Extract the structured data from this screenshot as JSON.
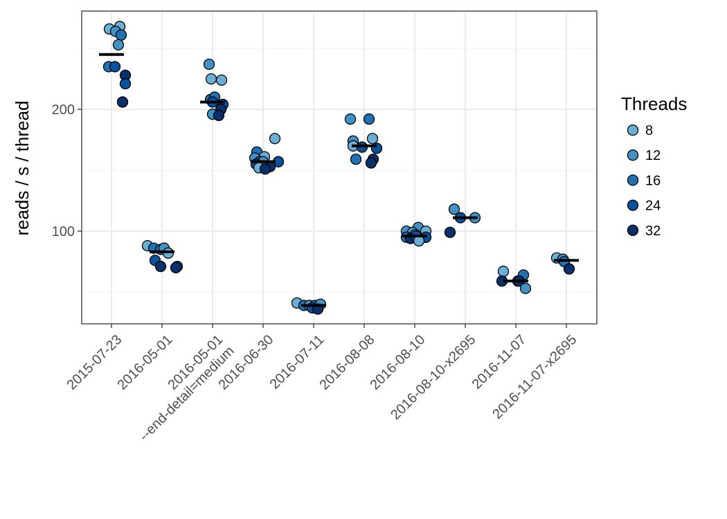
{
  "chart_data": {
    "type": "scatter",
    "subtype": "jittered strip plot with median bars",
    "title": "",
    "xlabel": "",
    "ylabel": "reads / s / thread",
    "ylim": [
      22,
      280
    ],
    "yticks": [
      100,
      200
    ],
    "grid": true,
    "legend_position": "right",
    "categories": [
      "2015-07-23",
      "2016-05-01",
      "2016-05-01\n--end-detail=medium",
      "2016-06-30",
      "2016-07-11",
      "2016-08-08",
      "2016-08-10",
      "2016-08-10-x2695",
      "2016-11-07",
      "2016-11-07-x2695"
    ],
    "legend": {
      "title": "Threads",
      "entries": [
        {
          "label": "8",
          "color": "#6BAED6"
        },
        {
          "label": "12",
          "color": "#4292C6"
        },
        {
          "label": "16",
          "color": "#2171B5"
        },
        {
          "label": "24",
          "color": "#08519C"
        },
        {
          "label": "32",
          "color": "#08306B"
        }
      ]
    },
    "medians": [
      245,
      83,
      206,
      157,
      39,
      170,
      96,
      111,
      59,
      76
    ],
    "points": [
      {
        "cat": 0,
        "dx": -3,
        "threads": 8,
        "y": 266
      },
      {
        "cat": 0,
        "dx": 12,
        "threads": 8,
        "y": 268
      },
      {
        "cat": 0,
        "dx": 6,
        "threads": 12,
        "y": 264
      },
      {
        "cat": 0,
        "dx": 14,
        "threads": 16,
        "y": 261
      },
      {
        "cat": 0,
        "dx": 10,
        "threads": 12,
        "y": 253
      },
      {
        "cat": 0,
        "dx": -4,
        "threads": 16,
        "y": 235
      },
      {
        "cat": 0,
        "dx": 5,
        "threads": 24,
        "y": 235
      },
      {
        "cat": 0,
        "dx": 20,
        "threads": 32,
        "y": 228
      },
      {
        "cat": 0,
        "dx": 20,
        "threads": 24,
        "y": 221
      },
      {
        "cat": 0,
        "dx": 16,
        "threads": 32,
        "y": 206
      },
      {
        "cat": 1,
        "dx": -21,
        "threads": 8,
        "y": 88
      },
      {
        "cat": 1,
        "dx": -12,
        "threads": 16,
        "y": 86
      },
      {
        "cat": 1,
        "dx": -2,
        "threads": 16,
        "y": 85
      },
      {
        "cat": 1,
        "dx": 3,
        "threads": 12,
        "y": 86
      },
      {
        "cat": 1,
        "dx": 9,
        "threads": 8,
        "y": 82
      },
      {
        "cat": 1,
        "dx": -10,
        "threads": 24,
        "y": 76
      },
      {
        "cat": 1,
        "dx": -2,
        "threads": 32,
        "y": 71
      },
      {
        "cat": 1,
        "dx": 22,
        "threads": 24,
        "y": 71
      },
      {
        "cat": 1,
        "dx": 20,
        "threads": 32,
        "y": 70
      },
      {
        "cat": 2,
        "dx": -5,
        "threads": 12,
        "y": 237
      },
      {
        "cat": 2,
        "dx": -2,
        "threads": 8,
        "y": 225
      },
      {
        "cat": 2,
        "dx": 13,
        "threads": 8,
        "y": 224
      },
      {
        "cat": 2,
        "dx": -3,
        "threads": 16,
        "y": 208
      },
      {
        "cat": 2,
        "dx": 3,
        "threads": 16,
        "y": 210
      },
      {
        "cat": 2,
        "dx": 0,
        "threads": 24,
        "y": 206
      },
      {
        "cat": 2,
        "dx": 15,
        "threads": 24,
        "y": 204
      },
      {
        "cat": 2,
        "dx": 12,
        "threads": 32,
        "y": 200
      },
      {
        "cat": 2,
        "dx": 0,
        "threads": 12,
        "y": 196
      },
      {
        "cat": 2,
        "dx": 9,
        "threads": 32,
        "y": 195
      },
      {
        "cat": 3,
        "dx": 17,
        "threads": 8,
        "y": 176
      },
      {
        "cat": 3,
        "dx": -9,
        "threads": 16,
        "y": 165
      },
      {
        "cat": 3,
        "dx": 2,
        "threads": 8,
        "y": 161
      },
      {
        "cat": 3,
        "dx": -12,
        "threads": 12,
        "y": 160
      },
      {
        "cat": 3,
        "dx": -5,
        "threads": 16,
        "y": 157
      },
      {
        "cat": 3,
        "dx": 0,
        "threads": 12,
        "y": 157
      },
      {
        "cat": 3,
        "dx": 22,
        "threads": 24,
        "y": 157
      },
      {
        "cat": 3,
        "dx": -10,
        "threads": 24,
        "y": 155
      },
      {
        "cat": 3,
        "dx": -6,
        "threads": 8,
        "y": 152
      },
      {
        "cat": 3,
        "dx": 10,
        "threads": 32,
        "y": 153
      },
      {
        "cat": 3,
        "dx": 3,
        "threads": 32,
        "y": 151
      },
      {
        "cat": 4,
        "dx": -24,
        "threads": 8,
        "y": 41
      },
      {
        "cat": 4,
        "dx": -14,
        "threads": 16,
        "y": 39
      },
      {
        "cat": 4,
        "dx": -6,
        "threads": 12,
        "y": 39
      },
      {
        "cat": 4,
        "dx": 2,
        "threads": 16,
        "y": 39
      },
      {
        "cat": 4,
        "dx": 10,
        "threads": 12,
        "y": 40
      },
      {
        "cat": 4,
        "dx": -2,
        "threads": 24,
        "y": 37
      },
      {
        "cat": 4,
        "dx": 6,
        "threads": 32,
        "y": 36
      },
      {
        "cat": 5,
        "dx": -20,
        "threads": 12,
        "y": 192
      },
      {
        "cat": 5,
        "dx": 7,
        "threads": 16,
        "y": 192
      },
      {
        "cat": 5,
        "dx": -16,
        "threads": 12,
        "y": 174
      },
      {
        "cat": 5,
        "dx": 12,
        "threads": 8,
        "y": 176
      },
      {
        "cat": 5,
        "dx": -16,
        "threads": 8,
        "y": 170
      },
      {
        "cat": 5,
        "dx": -3,
        "threads": 24,
        "y": 169
      },
      {
        "cat": 5,
        "dx": 18,
        "threads": 24,
        "y": 168
      },
      {
        "cat": 5,
        "dx": -12,
        "threads": 16,
        "y": 159
      },
      {
        "cat": 5,
        "dx": 13,
        "threads": 32,
        "y": 159
      },
      {
        "cat": 5,
        "dx": 10,
        "threads": 32,
        "y": 156
      },
      {
        "cat": 6,
        "dx": -12,
        "threads": 12,
        "y": 100
      },
      {
        "cat": 6,
        "dx": 5,
        "threads": 12,
        "y": 103
      },
      {
        "cat": 6,
        "dx": 16,
        "threads": 8,
        "y": 100
      },
      {
        "cat": 6,
        "dx": -3,
        "threads": 12,
        "y": 99
      },
      {
        "cat": 6,
        "dx": 1,
        "threads": 8,
        "y": 97
      },
      {
        "cat": 6,
        "dx": -12,
        "threads": 16,
        "y": 95
      },
      {
        "cat": 6,
        "dx": -6,
        "threads": 32,
        "y": 94
      },
      {
        "cat": 6,
        "dx": 2,
        "threads": 24,
        "y": 96
      },
      {
        "cat": 6,
        "dx": 16,
        "threads": 24,
        "y": 95
      },
      {
        "cat": 6,
        "dx": 6,
        "threads": 8,
        "y": 92
      },
      {
        "cat": 7,
        "dx": -16,
        "threads": 12,
        "y": 118
      },
      {
        "cat": 7,
        "dx": -7,
        "threads": 24,
        "y": 111
      },
      {
        "cat": 7,
        "dx": 14,
        "threads": 12,
        "y": 111
      },
      {
        "cat": 7,
        "dx": -22,
        "threads": 32,
        "y": 99
      },
      {
        "cat": 8,
        "dx": -18,
        "threads": 8,
        "y": 67
      },
      {
        "cat": 8,
        "dx": 11,
        "threads": 16,
        "y": 64
      },
      {
        "cat": 8,
        "dx": -20,
        "threads": 32,
        "y": 59
      },
      {
        "cat": 8,
        "dx": 3,
        "threads": 16,
        "y": 59
      },
      {
        "cat": 8,
        "dx": 5,
        "threads": 32,
        "y": 59
      },
      {
        "cat": 8,
        "dx": 14,
        "threads": 12,
        "y": 53
      },
      {
        "cat": 9,
        "dx": -14,
        "threads": 8,
        "y": 78
      },
      {
        "cat": 9,
        "dx": -5,
        "threads": 12,
        "y": 77
      },
      {
        "cat": 9,
        "dx": -3,
        "threads": 16,
        "y": 75
      },
      {
        "cat": 9,
        "dx": 4,
        "threads": 32,
        "y": 69
      }
    ]
  }
}
